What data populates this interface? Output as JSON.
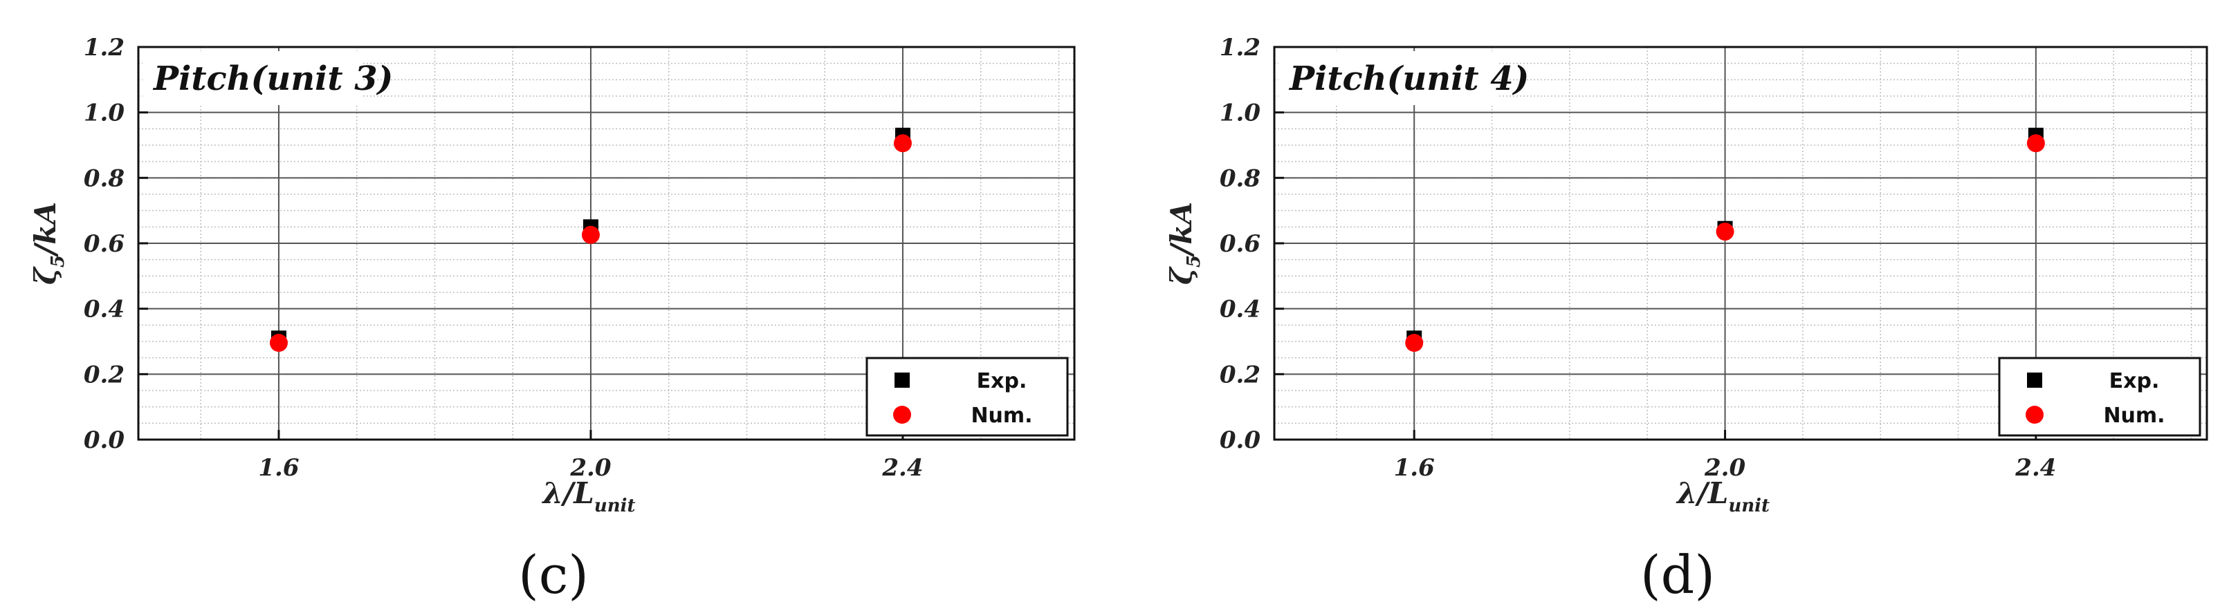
{
  "chart_data": [
    {
      "type": "scatter",
      "panel_label": "(c)",
      "annotation": "Pitch(unit 3)",
      "xlabel": "λ/L",
      "xlabel_sub": "unit",
      "ylabel": "ζ",
      "ylabel_sub": "5",
      "ylabel_tail": "/kA",
      "xlim": [
        1.42,
        2.62
      ],
      "ylim": [
        0.0,
        1.2
      ],
      "x_ticks": [
        "1.6",
        "2.0",
        "2.4"
      ],
      "y_ticks": [
        "0.0",
        "0.2",
        "0.4",
        "0.6",
        "0.8",
        "1.0",
        "1.2"
      ],
      "grid": true,
      "legend_position": "bottom-right",
      "series": [
        {
          "name": "Exp.",
          "marker": "square",
          "color": "#000000",
          "x": [
            1.6,
            2.0,
            2.4
          ],
          "y": [
            0.31,
            0.65,
            0.93
          ]
        },
        {
          "name": "Num.",
          "marker": "circle",
          "color": "#ff0000",
          "x": [
            1.6,
            2.0,
            2.4
          ],
          "y": [
            0.3,
            0.63,
            0.91
          ]
        }
      ]
    },
    {
      "type": "scatter",
      "panel_label": "(d)",
      "annotation": "Pitch(unit 4)",
      "xlabel": "λ/L",
      "xlabel_sub": "unit",
      "ylabel": "ζ",
      "ylabel_sub": "5",
      "ylabel_tail": "/kA",
      "xlim": [
        1.42,
        2.62
      ],
      "ylim": [
        0.0,
        1.2
      ],
      "x_ticks": [
        "1.6",
        "2.0",
        "2.4"
      ],
      "y_ticks": [
        "0.0",
        "0.2",
        "0.4",
        "0.6",
        "0.8",
        "1.0",
        "1.2"
      ],
      "grid": true,
      "legend_position": "bottom-right",
      "series": [
        {
          "name": "Exp.",
          "marker": "square",
          "color": "#000000",
          "x": [
            1.6,
            2.0,
            2.4
          ],
          "y": [
            0.31,
            0.645,
            0.93
          ]
        },
        {
          "name": "Num.",
          "marker": "circle",
          "color": "#ff0000",
          "x": [
            1.6,
            2.0,
            2.4
          ],
          "y": [
            0.3,
            0.64,
            0.91
          ]
        }
      ]
    }
  ]
}
